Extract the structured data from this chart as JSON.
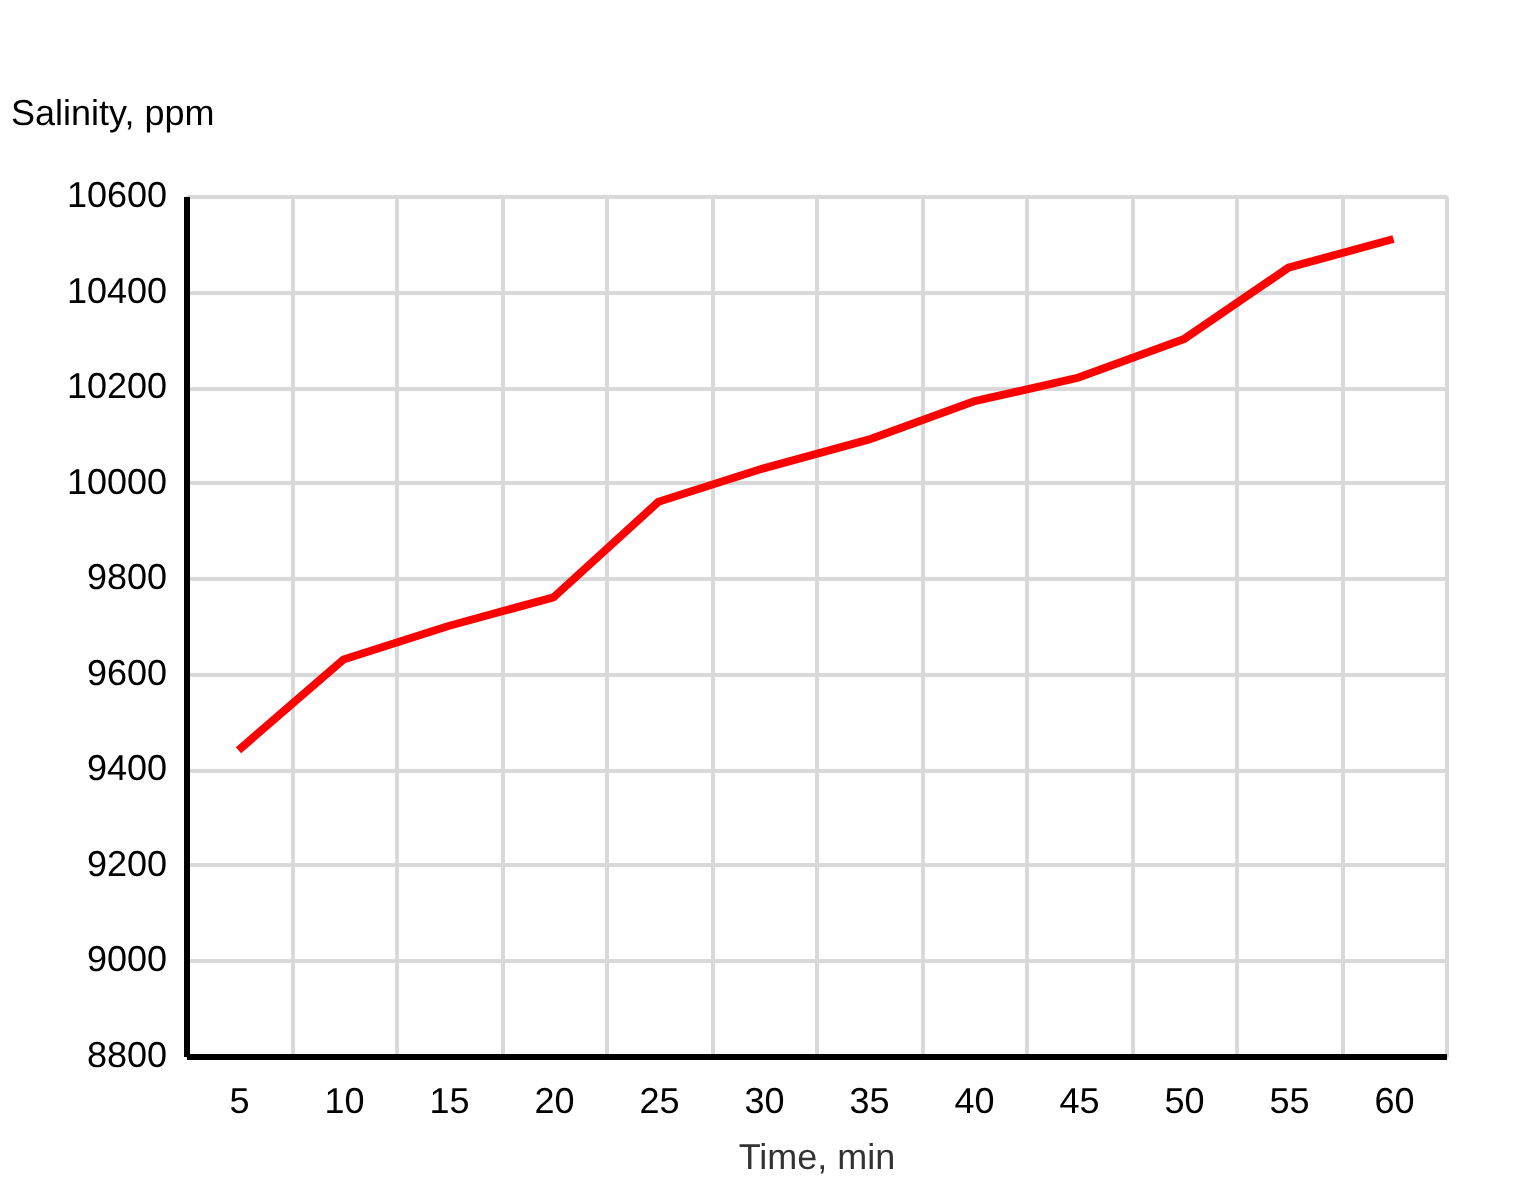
{
  "chart_data": {
    "type": "line",
    "xlabel": "Time, min",
    "ylabel": "Salinity, ppm",
    "categories": [
      "5",
      "10",
      "15",
      "20",
      "25",
      "30",
      "35",
      "40",
      "45",
      "50",
      "55",
      "60"
    ],
    "series": [
      {
        "color": "#ff0000",
        "values": [
          9440,
          9630,
          9700,
          9760,
          9960,
          10030,
          10090,
          10170,
          10220,
          10300,
          10450,
          10510
        ]
      }
    ],
    "ylim": [
      8800,
      10600
    ],
    "yticks": [
      8800,
      9000,
      9200,
      9400,
      9600,
      9800,
      10000,
      10200,
      10400,
      10600
    ],
    "grid": true,
    "legend": false,
    "marker": "none",
    "line_style": "solid"
  }
}
